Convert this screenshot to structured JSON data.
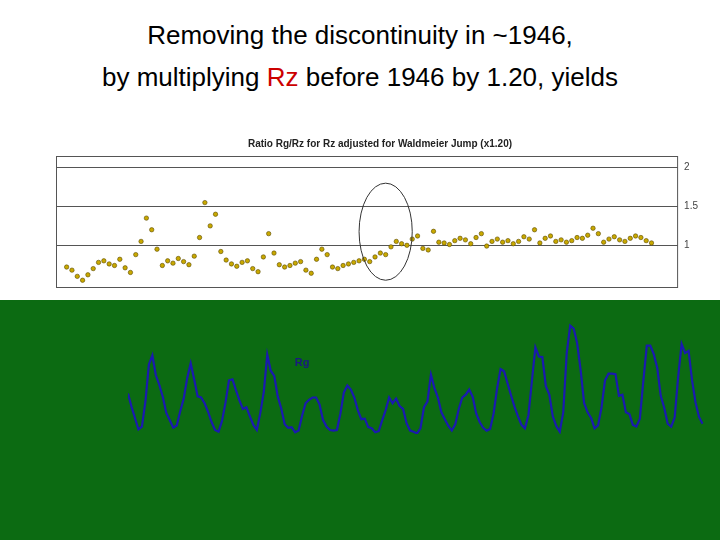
{
  "title": {
    "lines": [
      [
        {
          "text": "Removing the discontinuity in ~1946,"
        }
      ],
      [
        {
          "text": "by multiplying "
        },
        {
          "text": "Rz",
          "color": "#cc0000"
        },
        {
          "text": " before 1946 by 1.20, yields"
        }
      ]
    ]
  },
  "chart_data": [
    {
      "type": "scatter",
      "title": "Ratio Rg/Rz for Rz adjusted for Waldmeier Jump (x1.20)",
      "x": [
        1885,
        1886,
        1887,
        1888,
        1889,
        1890,
        1891,
        1892,
        1893,
        1894,
        1895,
        1896,
        1897,
        1898,
        1899,
        1900,
        1901,
        1902,
        1903,
        1904,
        1905,
        1906,
        1907,
        1908,
        1909,
        1910,
        1911,
        1912,
        1913,
        1914,
        1915,
        1916,
        1917,
        1918,
        1919,
        1920,
        1921,
        1922,
        1923,
        1924,
        1925,
        1926,
        1927,
        1928,
        1929,
        1930,
        1931,
        1932,
        1933,
        1934,
        1935,
        1936,
        1937,
        1938,
        1939,
        1940,
        1941,
        1942,
        1943,
        1944,
        1945,
        1946,
        1947,
        1948,
        1949,
        1950,
        1951,
        1952,
        1953,
        1954,
        1955,
        1956,
        1957,
        1958,
        1959,
        1960,
        1961,
        1962,
        1963,
        1964,
        1965,
        1966,
        1967,
        1968,
        1969,
        1970,
        1971,
        1972,
        1973,
        1974,
        1975,
        1976,
        1977,
        1978,
        1979,
        1980,
        1981,
        1982,
        1983,
        1984,
        1985,
        1986,
        1987,
        1988,
        1989,
        1990,
        1991,
        1992,
        1993,
        1994,
        1995
      ],
      "values": [
        0.72,
        0.68,
        0.6,
        0.55,
        0.62,
        0.7,
        0.78,
        0.8,
        0.76,
        0.74,
        0.82,
        0.71,
        0.65,
        0.88,
        1.05,
        1.35,
        1.2,
        0.95,
        0.74,
        0.8,
        0.77,
        0.83,
        0.79,
        0.75,
        0.86,
        1.1,
        1.55,
        1.25,
        1.4,
        0.92,
        0.81,
        0.76,
        0.73,
        0.78,
        0.8,
        0.7,
        0.66,
        0.85,
        1.15,
        0.9,
        0.75,
        0.72,
        0.74,
        0.77,
        0.79,
        0.68,
        0.64,
        0.82,
        0.95,
        0.88,
        0.72,
        0.7,
        0.74,
        0.76,
        0.78,
        0.8,
        0.82,
        0.79,
        0.85,
        0.9,
        0.88,
        0.98,
        1.05,
        1.02,
        1.0,
        1.08,
        1.12,
        0.96,
        0.94,
        1.18,
        1.04,
        1.03,
        1.01,
        1.06,
        1.09,
        1.07,
        1.02,
        1.1,
        1.15,
        0.99,
        1.05,
        1.08,
        1.04,
        1.06,
        1.02,
        1.05,
        1.11,
        1.08,
        1.2,
        1.03,
        1.09,
        1.12,
        1.05,
        1.07,
        1.04,
        1.06,
        1.1,
        1.09,
        1.13,
        1.22,
        1.15,
        1.04,
        1.08,
        1.11,
        1.07,
        1.05,
        1.09,
        1.12,
        1.1,
        1.06,
        1.03
      ],
      "color": "#c8a800",
      "marker": "circle",
      "xlim": [
        1883,
        2000
      ],
      "ylim": [
        0.45,
        2.15
      ],
      "yticks": [
        1,
        1.5,
        2
      ],
      "grid": "y",
      "tick_labels": "y",
      "annotations": [
        {
          "type": "ellipse",
          "x": [
            1940,
            1950
          ],
          "y": [
            0.55,
            1.8
          ]
        }
      ]
    },
    {
      "type": "line",
      "x": [
        1830,
        1831,
        1832,
        1833,
        1834,
        1835,
        1836,
        1837,
        1838,
        1839,
        1840,
        1841,
        1842,
        1843,
        1844,
        1845,
        1846,
        1847,
        1848,
        1849,
        1850,
        1851,
        1852,
        1853,
        1854,
        1855,
        1856,
        1857,
        1858,
        1859,
        1860,
        1861,
        1862,
        1863,
        1864,
        1865,
        1866,
        1867,
        1868,
        1869,
        1870,
        1871,
        1872,
        1873,
        1874,
        1875,
        1876,
        1877,
        1878,
        1879,
        1880,
        1881,
        1882,
        1883,
        1884,
        1885,
        1886,
        1887,
        1888,
        1889,
        1890,
        1891,
        1892,
        1893,
        1894,
        1895,
        1896,
        1897,
        1898,
        1899,
        1900,
        1901,
        1902,
        1903,
        1904,
        1905,
        1906,
        1907,
        1908,
        1909,
        1910,
        1911,
        1912,
        1913,
        1914,
        1915,
        1916,
        1917,
        1918,
        1919,
        1920,
        1921,
        1922,
        1923,
        1924,
        1925,
        1926,
        1927,
        1928,
        1929,
        1930,
        1931,
        1932,
        1933,
        1934,
        1935,
        1936,
        1937,
        1938,
        1939,
        1940,
        1941,
        1942,
        1943,
        1944,
        1945,
        1946,
        1947,
        1948,
        1949,
        1950,
        1951,
        1952,
        1953,
        1954,
        1955,
        1956,
        1957,
        1958,
        1959,
        1960,
        1961,
        1962,
        1963,
        1964,
        1965,
        1966,
        1967,
        1968,
        1969,
        1970,
        1971,
        1972,
        1973,
        1974,
        1975,
        1976,
        1977,
        1978,
        1979,
        1980,
        1981,
        1982,
        1983,
        1984,
        1985,
        1986,
        1987,
        1988,
        1989,
        1990,
        1991,
        1992,
        1993,
        1994,
        1995
      ],
      "values": [
        71,
        48,
        28,
        8,
        13,
        57,
        122,
        138,
        103,
        86,
        65,
        37,
        24,
        11,
        15,
        40,
        62,
        98,
        124,
        96,
        66,
        64,
        54,
        39,
        21,
        7,
        4,
        23,
        55,
        94,
        96,
        77,
        59,
        44,
        47,
        31,
        16,
        7,
        37,
        74,
        139,
        111,
        102,
        66,
        45,
        17,
        11,
        12,
        3,
        6,
        32,
        54,
        60,
        64,
        64,
        52,
        25,
        13,
        7,
        6,
        7,
        36,
        73,
        85,
        78,
        64,
        42,
        26,
        27,
        12,
        10,
        3,
        5,
        24,
        42,
        64,
        54,
        62,
        49,
        44,
        19,
        6,
        4,
        1,
        10,
        47,
        57,
        104,
        81,
        64,
        38,
        26,
        14,
        6,
        17,
        44,
        64,
        69,
        78,
        65,
        36,
        21,
        11,
        6,
        9,
        36,
        80,
        114,
        110,
        89,
        68,
        48,
        31,
        16,
        10,
        33,
        93,
        152,
        136,
        135,
        84,
        69,
        31,
        14,
        4,
        38,
        142,
        190,
        185,
        159,
        112,
        54,
        38,
        28,
        10,
        15,
        47,
        94,
        106,
        106,
        105,
        67,
        69,
        38,
        35,
        16,
        13,
        27,
        93,
        155,
        155,
        140,
        116,
        67,
        46,
        18,
        13,
        29,
        100,
        158,
        142,
        146,
        94,
        55,
        30,
        18
      ],
      "color": "#1a1ab0",
      "xlim": [
        1830,
        1996
      ],
      "ylim": [
        0,
        200
      ],
      "grid": false,
      "tick_labels": false,
      "annotations": [
        {
          "type": "text",
          "text": "Rg",
          "x": 1880,
          "y": 125
        }
      ]
    }
  ]
}
